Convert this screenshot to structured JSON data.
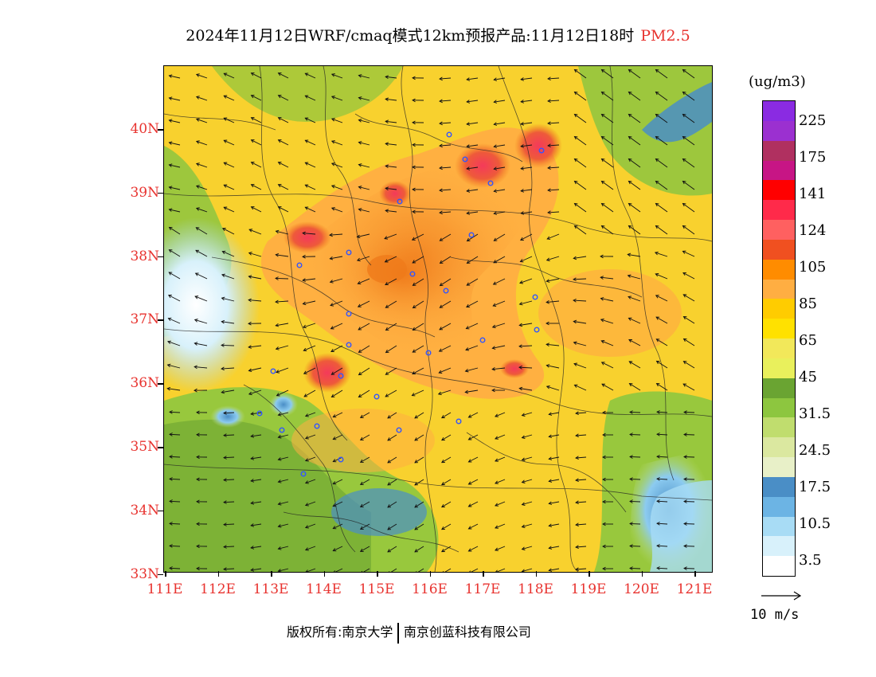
{
  "title": {
    "main": "2024年11月12日WRF/cmaq模式12km预报产品:11月12日18时",
    "pollutant": "PM2.5",
    "pollutant_color": "#e8332f"
  },
  "map": {
    "lat_ticks": [
      "40N",
      "39N",
      "38N",
      "37N",
      "36N",
      "35N",
      "34N",
      "33N"
    ],
    "lon_ticks": [
      "111E",
      "112E",
      "113E",
      "114E",
      "115E",
      "116E",
      "117E",
      "118E",
      "119E",
      "120E",
      "121E"
    ],
    "tick_color": "#e8332f",
    "station_marker_color": "#3355ff"
  },
  "legend": {
    "unit": "(ug/m3)",
    "labels": [
      "225",
      "175",
      "141",
      "124",
      "105",
      "85",
      "65",
      "45",
      "31.5",
      "24.5",
      "17.5",
      "10.5",
      "3.5"
    ],
    "colors": [
      "#8a2be2",
      "#9b30d0",
      "#b03060",
      "#c71585",
      "#ff0000",
      "#ff2a4a",
      "#ff6060",
      "#f05020",
      "#ff8c00",
      "#ffae42",
      "#ffcc00",
      "#ffe100",
      "#f2e85a",
      "#e9f05c",
      "#6aa432",
      "#8dc63f",
      "#c0dd6e",
      "#dbe8a0",
      "#e8f0c8",
      "#4a8ec6",
      "#6cb4e4",
      "#a8dcf5",
      "#d8f1fb",
      "#ffffff"
    ]
  },
  "wind_reference": {
    "label": "10 m/s"
  },
  "footer": {
    "copyright_left": "版权所有:南京大学",
    "copyright_right": "南京创蓝科技有限公司"
  }
}
